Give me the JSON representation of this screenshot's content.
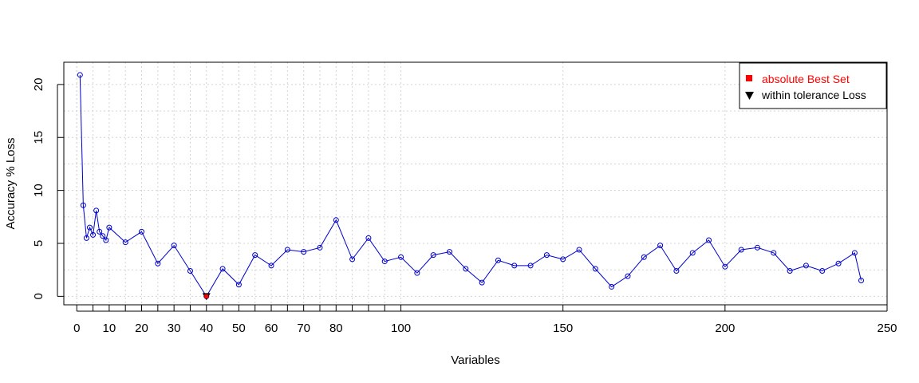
{
  "chart_data": {
    "type": "line",
    "title": "",
    "xlabel": "Variables",
    "ylabel": "Accuracy % Loss",
    "xlim": [
      -4,
      250
    ],
    "ylim": [
      -0.8,
      22.1
    ],
    "x_major_ticks": [
      0,
      50,
      100,
      150,
      200,
      250
    ],
    "x_minor_ticks": [
      0,
      10,
      20,
      30,
      40,
      50,
      60,
      70,
      80
    ],
    "x_extra_ticks": [
      5,
      15,
      25,
      35,
      45,
      55,
      65,
      75,
      85,
      90,
      95
    ],
    "y_ticks": [
      0,
      5,
      10,
      15,
      20
    ],
    "grid": true,
    "legend_position": "top-right",
    "legend": [
      {
        "label": "absolute Best Set",
        "color": "#ff0000",
        "symbol": "square"
      },
      {
        "label": "within tolerance Loss",
        "color": "#000000",
        "symbol": "triangle-down"
      }
    ],
    "series": [
      {
        "color": "#0000cc",
        "x": [
          1,
          2,
          3,
          4,
          5,
          6,
          7,
          8,
          9,
          10,
          15,
          20,
          25,
          30,
          35,
          40,
          45,
          50,
          55,
          60,
          65,
          70,
          75,
          80,
          85,
          90,
          95,
          100,
          105,
          110,
          115,
          120,
          125,
          130,
          135,
          140,
          145,
          150,
          155,
          160,
          165,
          170,
          175,
          180,
          185,
          190,
          195,
          200,
          205,
          210,
          215,
          220,
          225,
          230,
          235,
          240,
          242
        ],
        "y": [
          20.9,
          8.6,
          5.5,
          6.5,
          5.8,
          8.1,
          6.1,
          5.7,
          5.3,
          6.5,
          5.1,
          6.1,
          3.1,
          4.8,
          2.4,
          0.0,
          2.6,
          1.1,
          3.9,
          2.9,
          4.4,
          4.2,
          4.6,
          7.2,
          3.5,
          5.5,
          3.3,
          3.7,
          2.2,
          3.9,
          4.2,
          2.6,
          1.3,
          3.4,
          2.9,
          2.9,
          3.9,
          3.5,
          4.4,
          2.6,
          0.9,
          1.9,
          3.7,
          4.8,
          2.4,
          4.1,
          5.3,
          2.8,
          4.4,
          4.6,
          4.1,
          2.4,
          2.9,
          2.4,
          3.1,
          4.1,
          1.5
        ]
      }
    ],
    "markers": [
      {
        "name": "within tolerance Loss",
        "x": 40,
        "y": 0.0,
        "color": "#000000",
        "symbol": "triangle-down"
      },
      {
        "name": "absolute Best Set",
        "x": 40,
        "y": 0.0,
        "color": "#ff0000",
        "symbol": "square"
      }
    ]
  }
}
